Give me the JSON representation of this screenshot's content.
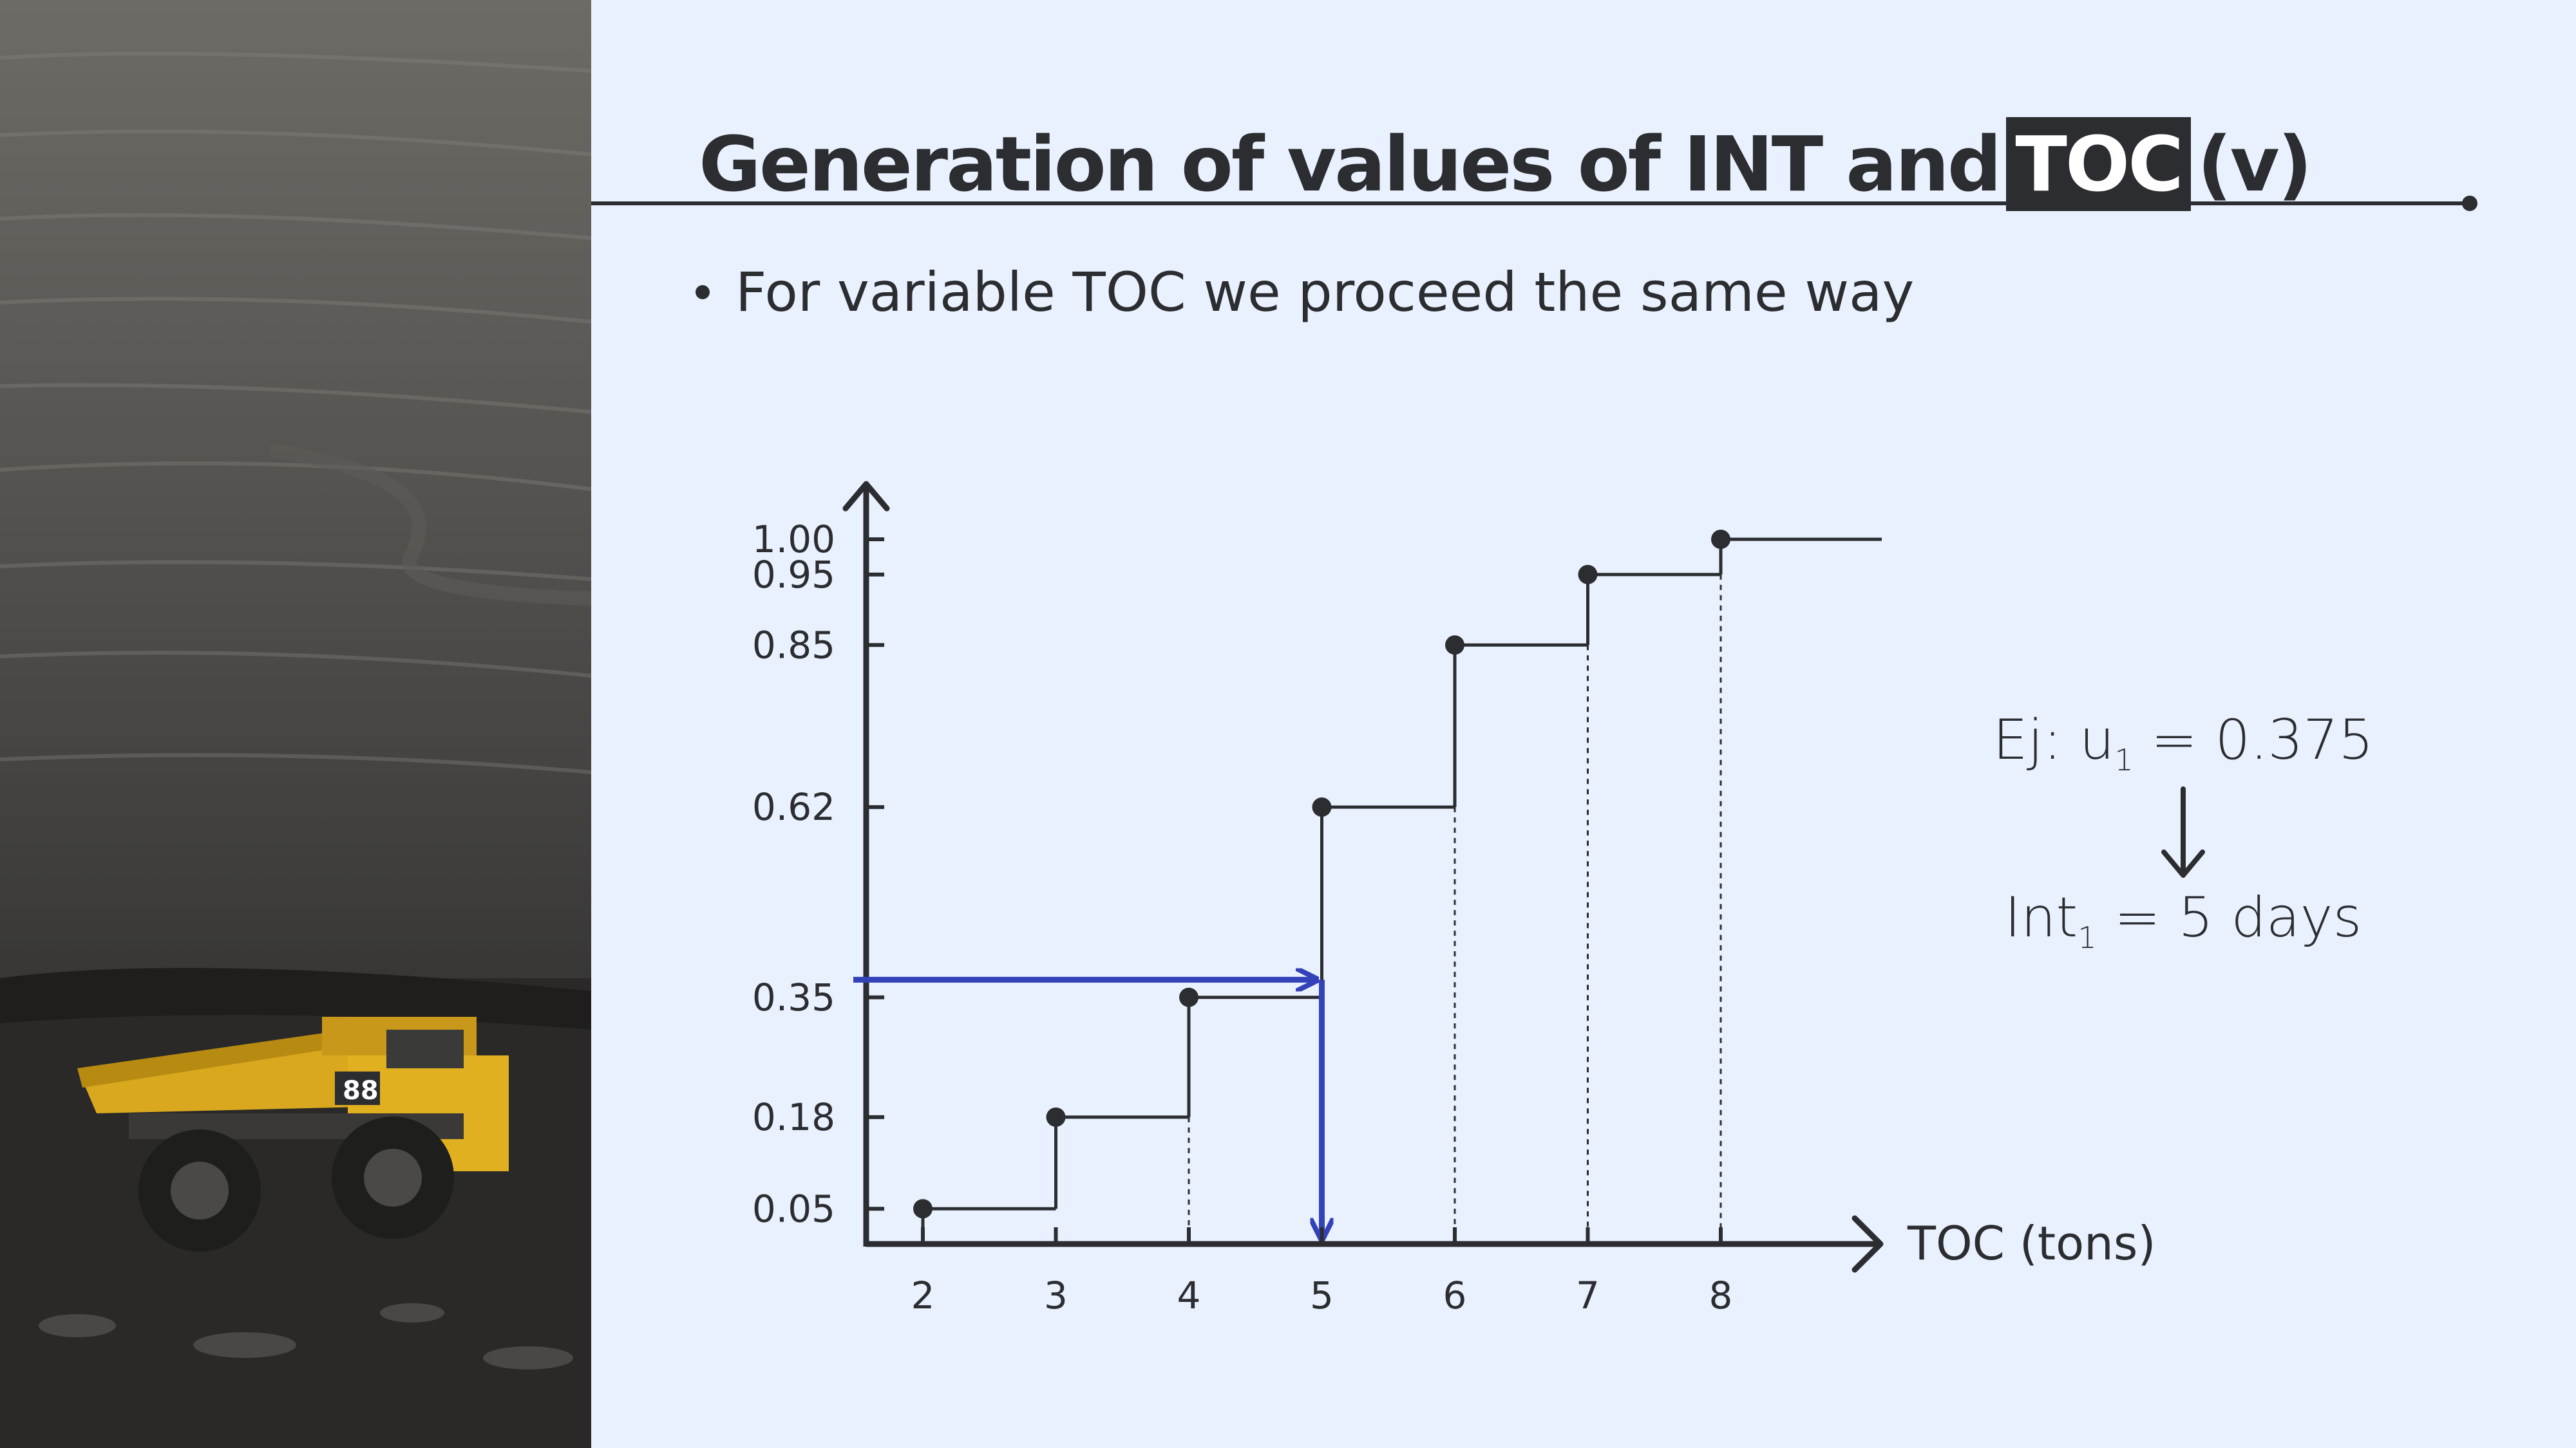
{
  "slide": {
    "title_part1": "Generation of values of INT and",
    "title_highlight": "TOC",
    "title_part2": "(v)",
    "bullet": "For variable TOC we proceed the same way"
  },
  "photo": {
    "truck_number": "88"
  },
  "example": {
    "prefix": "Ej:",
    "var": "u",
    "var_sub": "1",
    "eq": "=",
    "value": "0.375",
    "result_var": "Int",
    "result_sub": "1",
    "result_eq": "=",
    "result_value": "5 days"
  },
  "colors": {
    "ink": "#2B2D31",
    "lookup_arrow": "#3342B8",
    "background": "#EAF1FE"
  },
  "chart_data": {
    "type": "line",
    "subtype": "step-cdf",
    "xlabel": "TOC (tons)",
    "ylabel": "",
    "x_ticks": [
      "2",
      "3",
      "4",
      "5",
      "6",
      "7",
      "8"
    ],
    "y_ticks": [
      "0.05",
      "0.18",
      "0.35",
      "0.62",
      "0.85",
      "0.95",
      "1.00"
    ],
    "y_tick_values": [
      0.05,
      0.18,
      0.35,
      0.62,
      0.85,
      0.95,
      1.0
    ],
    "steps": [
      {
        "x": 2,
        "y": 0.05
      },
      {
        "x": 3,
        "y": 0.18
      },
      {
        "x": 4,
        "y": 0.35
      },
      {
        "x": 5,
        "y": 0.62
      },
      {
        "x": 6,
        "y": 0.85
      },
      {
        "x": 7,
        "y": 0.95
      },
      {
        "x": 8,
        "y": 1.0
      }
    ],
    "lookup": {
      "u": 0.375,
      "x": 5
    },
    "grid": false
  }
}
